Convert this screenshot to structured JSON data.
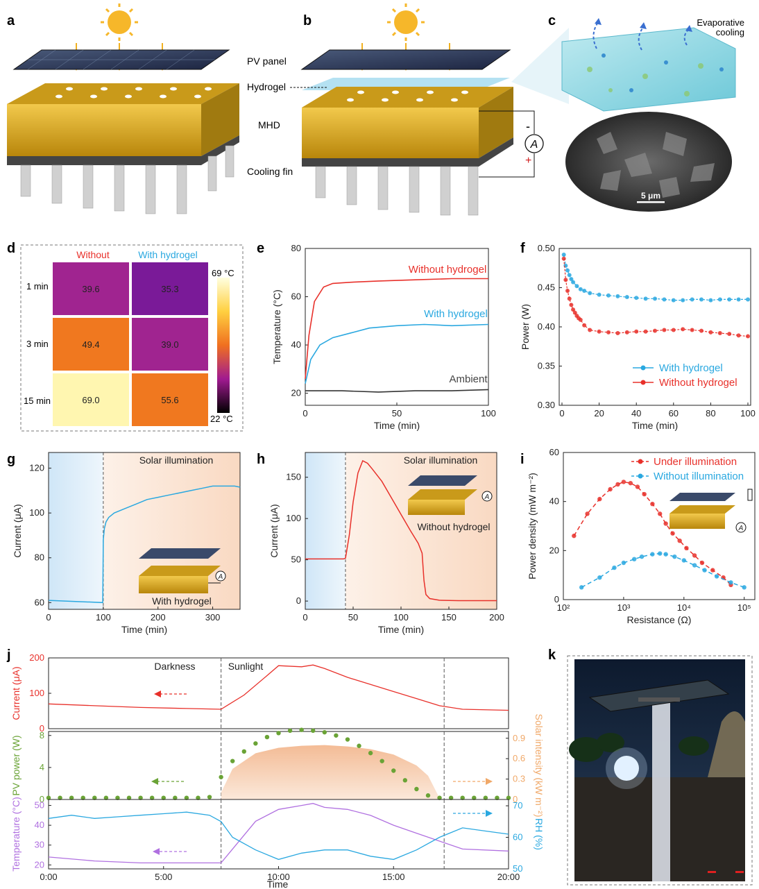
{
  "panel_letters": [
    "a",
    "b",
    "c",
    "d",
    "e",
    "f",
    "g",
    "h",
    "i",
    "j",
    "k"
  ],
  "schematic": {
    "labels": [
      "PV panel",
      "Hydrogel",
      "MHD",
      "Cooling fin"
    ],
    "evaporative_cooling": [
      "Evaporative",
      "cooling"
    ],
    "scale_bar": "5 μm",
    "ammeter": "A",
    "minus": "-",
    "plus": "+"
  },
  "thermal": {
    "col_headers": [
      "Without",
      "With hydrogel"
    ],
    "row_labels": [
      "1 min",
      "3 min",
      "15 min"
    ],
    "values": [
      [
        "39.6",
        "35.3"
      ],
      [
        "49.4",
        "39.0"
      ],
      [
        "69.0",
        "55.6"
      ]
    ],
    "cells": [
      [
        39.6,
        35.3
      ],
      [
        49.4,
        39.0
      ],
      [
        69.0,
        55.6
      ]
    ],
    "scale_max": "69 °C",
    "scale_min": "22 °C",
    "colors": {
      "without": "#e8302a",
      "with": "#2aa8e0"
    }
  },
  "colors": {
    "red": "#e8302a",
    "blue": "#2aa8e0",
    "black": "#333333",
    "green": "#6aa336",
    "purple": "#b070e0",
    "orange": "#f0a868"
  },
  "chart_data": [
    {
      "id": "e",
      "type": "line",
      "xlabel": "Time (min)",
      "ylabel": "Temperature (°C)",
      "xlim": [
        0,
        100
      ],
      "ylim": [
        15,
        80
      ],
      "xticks": [
        0,
        50,
        100
      ],
      "yticks": [
        20,
        40,
        60,
        80
      ],
      "series": [
        {
          "name": "Without hydrogel",
          "x": [
            0,
            2,
            5,
            10,
            15,
            25,
            40,
            60,
            80,
            100
          ],
          "y": [
            26,
            44,
            58,
            64,
            65.5,
            66,
            66.5,
            67,
            67.5,
            67.5
          ]
        },
        {
          "name": "With hydrogel",
          "x": [
            0,
            3,
            8,
            15,
            25,
            35,
            50,
            65,
            80,
            100
          ],
          "y": [
            24,
            34,
            40,
            43,
            45,
            47,
            48,
            48.5,
            48,
            48.5
          ]
        },
        {
          "name": "Ambient",
          "x": [
            0,
            20,
            40,
            60,
            80,
            100
          ],
          "y": [
            21,
            21,
            20.5,
            21,
            21,
            21.5
          ]
        }
      ]
    },
    {
      "id": "f",
      "type": "line",
      "xlabel": "Time (min)",
      "ylabel": "Power (W)",
      "xlim": [
        0,
        100
      ],
      "ylim": [
        0.3,
        0.5
      ],
      "xticks": [
        0,
        20,
        40,
        60,
        80,
        100
      ],
      "yticks": [
        0.3,
        0.35,
        0.4,
        0.45,
        0.5
      ],
      "legend": "bottom-right",
      "series": [
        {
          "name": "With hydrogel",
          "x": [
            1,
            2,
            3,
            4,
            5,
            6,
            8,
            10,
            12,
            15,
            20,
            25,
            30,
            35,
            40,
            45,
            50,
            55,
            60,
            65,
            70,
            75,
            80,
            85,
            90,
            95,
            100
          ],
          "y": [
            0.492,
            0.478,
            0.472,
            0.466,
            0.461,
            0.457,
            0.452,
            0.448,
            0.446,
            0.443,
            0.441,
            0.44,
            0.439,
            0.438,
            0.437,
            0.436,
            0.436,
            0.435,
            0.434,
            0.434,
            0.435,
            0.435,
            0.434,
            0.435,
            0.435,
            0.435,
            0.435
          ]
        },
        {
          "name": "Without hydrogel",
          "x": [
            1,
            2,
            3,
            4,
            5,
            6,
            7,
            8,
            9,
            10,
            12,
            15,
            20,
            25,
            30,
            35,
            40,
            45,
            50,
            55,
            60,
            65,
            70,
            75,
            80,
            85,
            90,
            95,
            100
          ],
          "y": [
            0.487,
            0.46,
            0.446,
            0.436,
            0.428,
            0.422,
            0.418,
            0.414,
            0.411,
            0.409,
            0.402,
            0.396,
            0.394,
            0.393,
            0.392,
            0.393,
            0.394,
            0.394,
            0.395,
            0.396,
            0.396,
            0.397,
            0.396,
            0.395,
            0.393,
            0.392,
            0.391,
            0.389,
            0.388
          ]
        }
      ]
    },
    {
      "id": "g",
      "type": "line",
      "xlabel": "Time (min)",
      "ylabel": "Current (μA)",
      "xlim": [
        0,
        350
      ],
      "ylim": [
        57,
        127
      ],
      "xticks": [
        0,
        100,
        200,
        300
      ],
      "yticks": [
        60,
        80,
        100,
        120
      ],
      "annotation": "Solar illumination",
      "inset_label": "With hydrogel",
      "series": [
        {
          "name": "",
          "x": [
            0,
            50,
            99,
            100,
            102,
            105,
            110,
            120,
            140,
            160,
            180,
            200,
            220,
            240,
            260,
            280,
            300,
            320,
            340,
            350
          ],
          "y": [
            61,
            60.5,
            60,
            88,
            93,
            96,
            98,
            100,
            102,
            104,
            106,
            107,
            108,
            109,
            110,
            111,
            112,
            112,
            112,
            111.5
          ]
        }
      ]
    },
    {
      "id": "h",
      "type": "line",
      "xlabel": "Time (min)",
      "ylabel": "Current (μA)",
      "xlim": [
        0,
        200
      ],
      "ylim": [
        -10,
        180
      ],
      "xticks": [
        0,
        50,
        100,
        150,
        200
      ],
      "yticks": [
        0,
        50,
        100,
        150
      ],
      "annotation": "Solar illumination",
      "inset_label": "Without hydrogel",
      "series": [
        {
          "name": "",
          "x": [
            0,
            40,
            42,
            46,
            50,
            55,
            60,
            65,
            70,
            80,
            90,
            100,
            110,
            118,
            122,
            124,
            126,
            130,
            140,
            160,
            200
          ],
          "y": [
            51,
            51,
            52,
            80,
            120,
            155,
            170,
            167,
            160,
            145,
            125,
            105,
            85,
            70,
            58,
            25,
            8,
            3,
            1,
            0.5,
            0.5
          ]
        }
      ]
    },
    {
      "id": "i",
      "type": "scatter",
      "xlabel": "Resistance (Ω)",
      "ylabel": "Power density (mW m⁻²)",
      "xscale": "log",
      "xlim": [
        100,
        150000
      ],
      "ylim": [
        0,
        60
      ],
      "xticks": [
        "10²",
        "10³",
        "10⁴",
        "10⁵"
      ],
      "yticks": [
        0,
        20,
        40,
        60
      ],
      "legend": "top-right",
      "series": [
        {
          "name": "Under illumination",
          "x": [
            150,
            250,
            400,
            600,
            800,
            1000,
            1300,
            1700,
            2200,
            3000,
            4000,
            5000,
            6500,
            8500,
            11000,
            15000,
            20000,
            30000,
            45000,
            60000
          ],
          "y": [
            26,
            35,
            41,
            45,
            47,
            48,
            47.5,
            46,
            43,
            39,
            35,
            31,
            27,
            24,
            21,
            18,
            15,
            12,
            9,
            6
          ]
        },
        {
          "name": "Without illumination",
          "x": [
            200,
            400,
            700,
            1000,
            1500,
            2000,
            3000,
            4000,
            5000,
            7000,
            10000,
            15000,
            22000,
            35000,
            60000,
            100000
          ],
          "y": [
            5,
            9,
            13,
            15,
            16.5,
            17.5,
            18.5,
            18.8,
            18.5,
            17.5,
            16,
            14,
            12,
            9.5,
            7,
            5
          ]
        }
      ]
    },
    {
      "id": "j",
      "type": "line",
      "stacked_panels": 3,
      "xlabel": "Time",
      "xticks": [
        "0:00",
        "5:00",
        "10:00",
        "15:00",
        "20:00"
      ],
      "xlim": [
        0,
        20
      ],
      "phases": [
        "Darkness",
        "Sunlight"
      ],
      "panels": [
        {
          "ylabel": "Current (μA)",
          "ylim": [
            0,
            200
          ],
          "yticks": [
            0,
            100,
            200
          ],
          "series": [
            {
              "name": "Current",
              "x": [
                0,
                2,
                4,
                6,
                7.5,
                8.5,
                9.5,
                10,
                11,
                11.5,
                12,
                13,
                14,
                15,
                16,
                17,
                18,
                20
              ],
              "y": [
                70,
                65,
                60,
                57,
                55,
                95,
                150,
                178,
                175,
                180,
                170,
                145,
                125,
                105,
                85,
                65,
                55,
                52
              ]
            }
          ]
        },
        {
          "ylabel": "PV power (W)",
          "ylim": [
            0,
            8.5
          ],
          "yticks": [
            0,
            4,
            8
          ],
          "y2label": "Solar intensity (kW m⁻²)",
          "y2lim": [
            0,
            1.0
          ],
          "y2ticks": [
            0,
            0.3,
            0.6,
            0.9
          ],
          "series": [
            {
              "name": "PV power",
              "x": [
                0,
                0.5,
                1,
                1.5,
                2,
                2.5,
                3,
                3.5,
                4,
                4.5,
                5,
                5.5,
                6,
                6.5,
                7,
                7.5,
                8,
                8.5,
                9,
                9.5,
                10,
                10.5,
                11,
                11.5,
                12,
                12.5,
                13,
                13.5,
                14,
                14.5,
                15,
                15.5,
                16,
                16.5,
                17,
                17.5,
                18,
                18.5,
                19,
                19.5,
                20
              ],
              "y": [
                0.2,
                0.2,
                0.2,
                0.2,
                0.2,
                0.2,
                0.2,
                0.2,
                0.2,
                0.2,
                0.2,
                0.2,
                0.2,
                0.2,
                0.3,
                2.8,
                4.8,
                6.0,
                7.0,
                7.8,
                8.3,
                8.6,
                8.7,
                8.6,
                8.4,
                8.0,
                7.5,
                6.7,
                5.8,
                4.8,
                3.6,
                2.4,
                1.3,
                0.5,
                0.2,
                0.2,
                0.2,
                0.2,
                0.2,
                0.2,
                0.2
              ]
            },
            {
              "name": "Solar intensity",
              "x": [
                7.5,
                8,
                9,
                10,
                11,
                12,
                13,
                14,
                15,
                16,
                16.5,
                17
              ],
              "y": [
                0.1,
                0.45,
                0.68,
                0.76,
                0.79,
                0.8,
                0.78,
                0.74,
                0.66,
                0.5,
                0.35,
                0.02
              ]
            }
          ]
        },
        {
          "ylabel": "Temperature (°C)",
          "ylim": [
            18,
            53
          ],
          "yticks": [
            20,
            30,
            40,
            50
          ],
          "y2label": "RH (%)",
          "y2lim": [
            50,
            72
          ],
          "y2ticks": [
            50,
            60,
            70
          ],
          "series": [
            {
              "name": "Temperature",
              "x": [
                0,
                2,
                4,
                6,
                7.5,
                8,
                9,
                10,
                11,
                11.5,
                12,
                13,
                14,
                15,
                16,
                17,
                18,
                20
              ],
              "y": [
                24,
                22,
                21,
                21,
                21,
                28,
                42,
                48,
                50,
                51,
                49,
                48,
                45,
                40,
                36,
                32,
                28,
                27
              ]
            },
            {
              "name": "RH",
              "x": [
                0,
                1,
                2,
                3,
                4,
                5,
                6,
                7,
                7.5,
                8,
                9,
                10,
                11,
                12,
                13,
                14,
                15,
                16,
                17,
                18,
                19,
                20
              ],
              "y": [
                66,
                67,
                66,
                66.5,
                67,
                67.5,
                68,
                67,
                65,
                60,
                56,
                53,
                55,
                56,
                56,
                54,
                53,
                56,
                60,
                63,
                62,
                61
              ]
            }
          ]
        }
      ]
    }
  ]
}
